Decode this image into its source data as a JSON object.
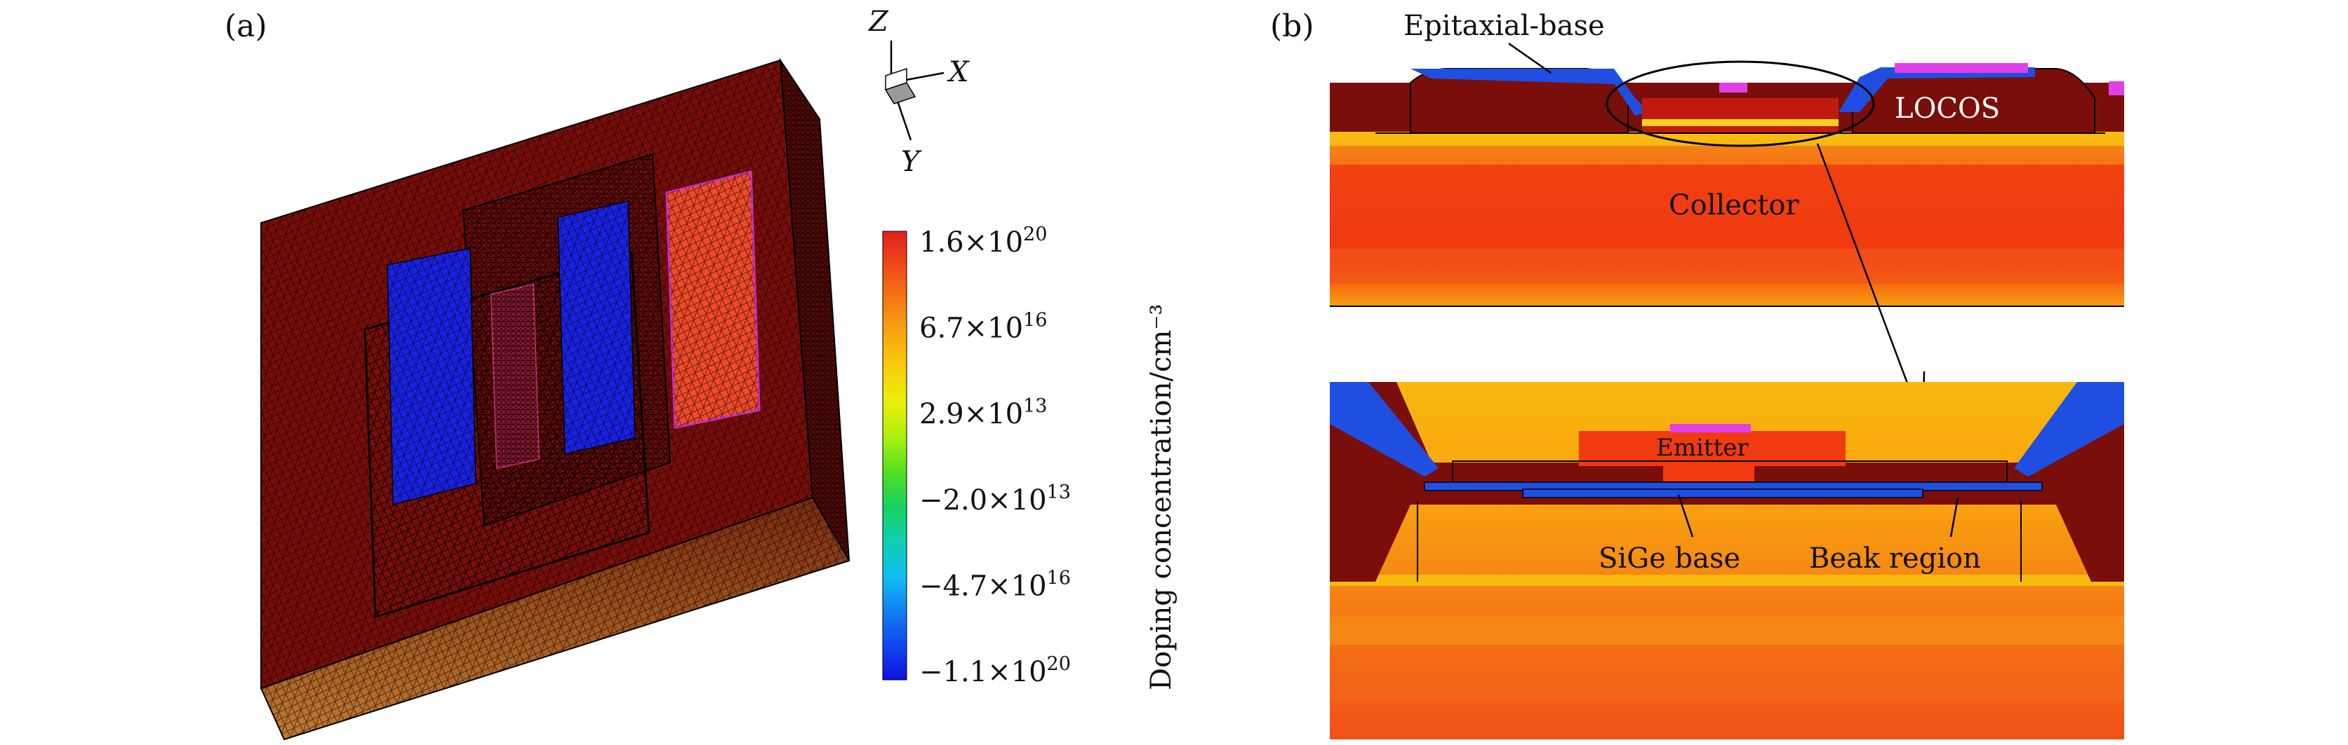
{
  "panel_a": {
    "label": "(a)",
    "axes": {
      "z": "Z",
      "x": "X",
      "y": "Y"
    },
    "colorbar": {
      "title": "Doping concentration/cm⁻³",
      "ticks": [
        {
          "mantissa": "1.6",
          "exp": "20"
        },
        {
          "mantissa": "6.7",
          "exp": "16"
        },
        {
          "mantissa": "2.9",
          "exp": "13"
        },
        {
          "mantissa": "−2.0",
          "exp": "13"
        },
        {
          "mantissa": "−4.7",
          "exp": "16"
        },
        {
          "mantissa": "−1.1",
          "exp": "20"
        }
      ],
      "colors": [
        "#e0201a",
        "#f04a18",
        "#f47a14",
        "#f8a810",
        "#f8d00c",
        "#e8f00a",
        "#a8f010",
        "#50e020",
        "#18d060",
        "#10d0b0",
        "#10c0f0",
        "#1080f0",
        "#1048f0",
        "#1010e0"
      ]
    }
  },
  "panel_b": {
    "label": "(b)",
    "top_labels": {
      "epitaxial_base": "Epitaxial-base",
      "locos": "LOCOS",
      "collector": "Collector"
    },
    "bottom_labels": {
      "emitter": "Emitter",
      "sige_base": "SiGe base",
      "beak_region": "Beak region"
    },
    "colors": {
      "oxide": "#1f4fe0",
      "contact": "#e040e8",
      "dark_red": "#7a0e0a",
      "collector_red": "#f03a10",
      "collector_orange": "#f58a14",
      "collector_yellow": "#f8b00f"
    }
  }
}
